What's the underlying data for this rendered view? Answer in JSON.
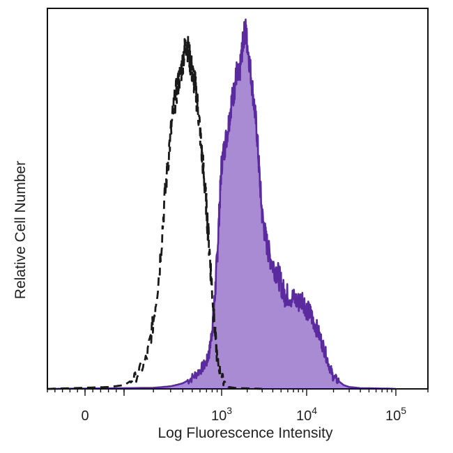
{
  "chart_data": {
    "type": "area",
    "title": "",
    "xlabel": "Log Fluorescence Intensity",
    "ylabel": "Relative Cell Number",
    "x_scale": "log (biexponential)",
    "xlim": [
      -100,
      100000
    ],
    "ylim": [
      0,
      100
    ],
    "grid": false,
    "legend": "none",
    "x_ticks": [
      {
        "value": 0,
        "base": "0",
        "exp": ""
      },
      {
        "value": 1000,
        "base": "10",
        "exp": "3"
      },
      {
        "value": 10000,
        "base": "10",
        "exp": "4"
      },
      {
        "value": 100000,
        "base": "10",
        "exp": "5"
      }
    ],
    "series": [
      {
        "style": "dashed-outline",
        "color": "#1a1a1a",
        "x": [
          -100,
          0,
          60,
          100,
          130,
          170,
          200,
          230,
          260,
          290,
          320,
          350,
          380,
          410,
          440,
          470,
          500,
          540,
          580,
          620,
          660,
          700,
          750,
          800,
          850,
          900,
          1000,
          1200,
          1500,
          3000
        ],
        "y": [
          0,
          0.3,
          0.5,
          1,
          3,
          8,
          18,
          32,
          50,
          64,
          74,
          80,
          84,
          89,
          92,
          88,
          84,
          80,
          73,
          64,
          56,
          48,
          37,
          26,
          16,
          8,
          3,
          0.5,
          0.2,
          0
        ]
      },
      {
        "style": "filled",
        "color": "#5b2a9e",
        "fill": "#a98bd4",
        "x": [
          -100,
          200,
          300,
          400,
          500,
          600,
          700,
          750,
          800,
          850,
          900,
          950,
          1000,
          1100,
          1200,
          1300,
          1400,
          1500,
          1600,
          1700,
          1800,
          1900,
          2000,
          2200,
          2400,
          2600,
          2800,
          3000,
          3300,
          3600,
          4000,
          4500,
          5000,
          5500,
          6000,
          7000,
          8000,
          9000,
          10000,
          11000,
          12000,
          14000,
          16000,
          18000,
          20000,
          23000,
          26000,
          30000,
          40000,
          100000
        ],
        "y": [
          0,
          0.3,
          0.7,
          1.5,
          3,
          5,
          7,
          10,
          16,
          24,
          35,
          48,
          60,
          65,
          70,
          76,
          79,
          84,
          82,
          88,
          93,
          96,
          92,
          84,
          76,
          68,
          56,
          46,
          40,
          36,
          33,
          31,
          28,
          25,
          25,
          24,
          23,
          24,
          21,
          20,
          18,
          14,
          10,
          6,
          3,
          2,
          1,
          0.5,
          0.2,
          0
        ]
      }
    ]
  }
}
